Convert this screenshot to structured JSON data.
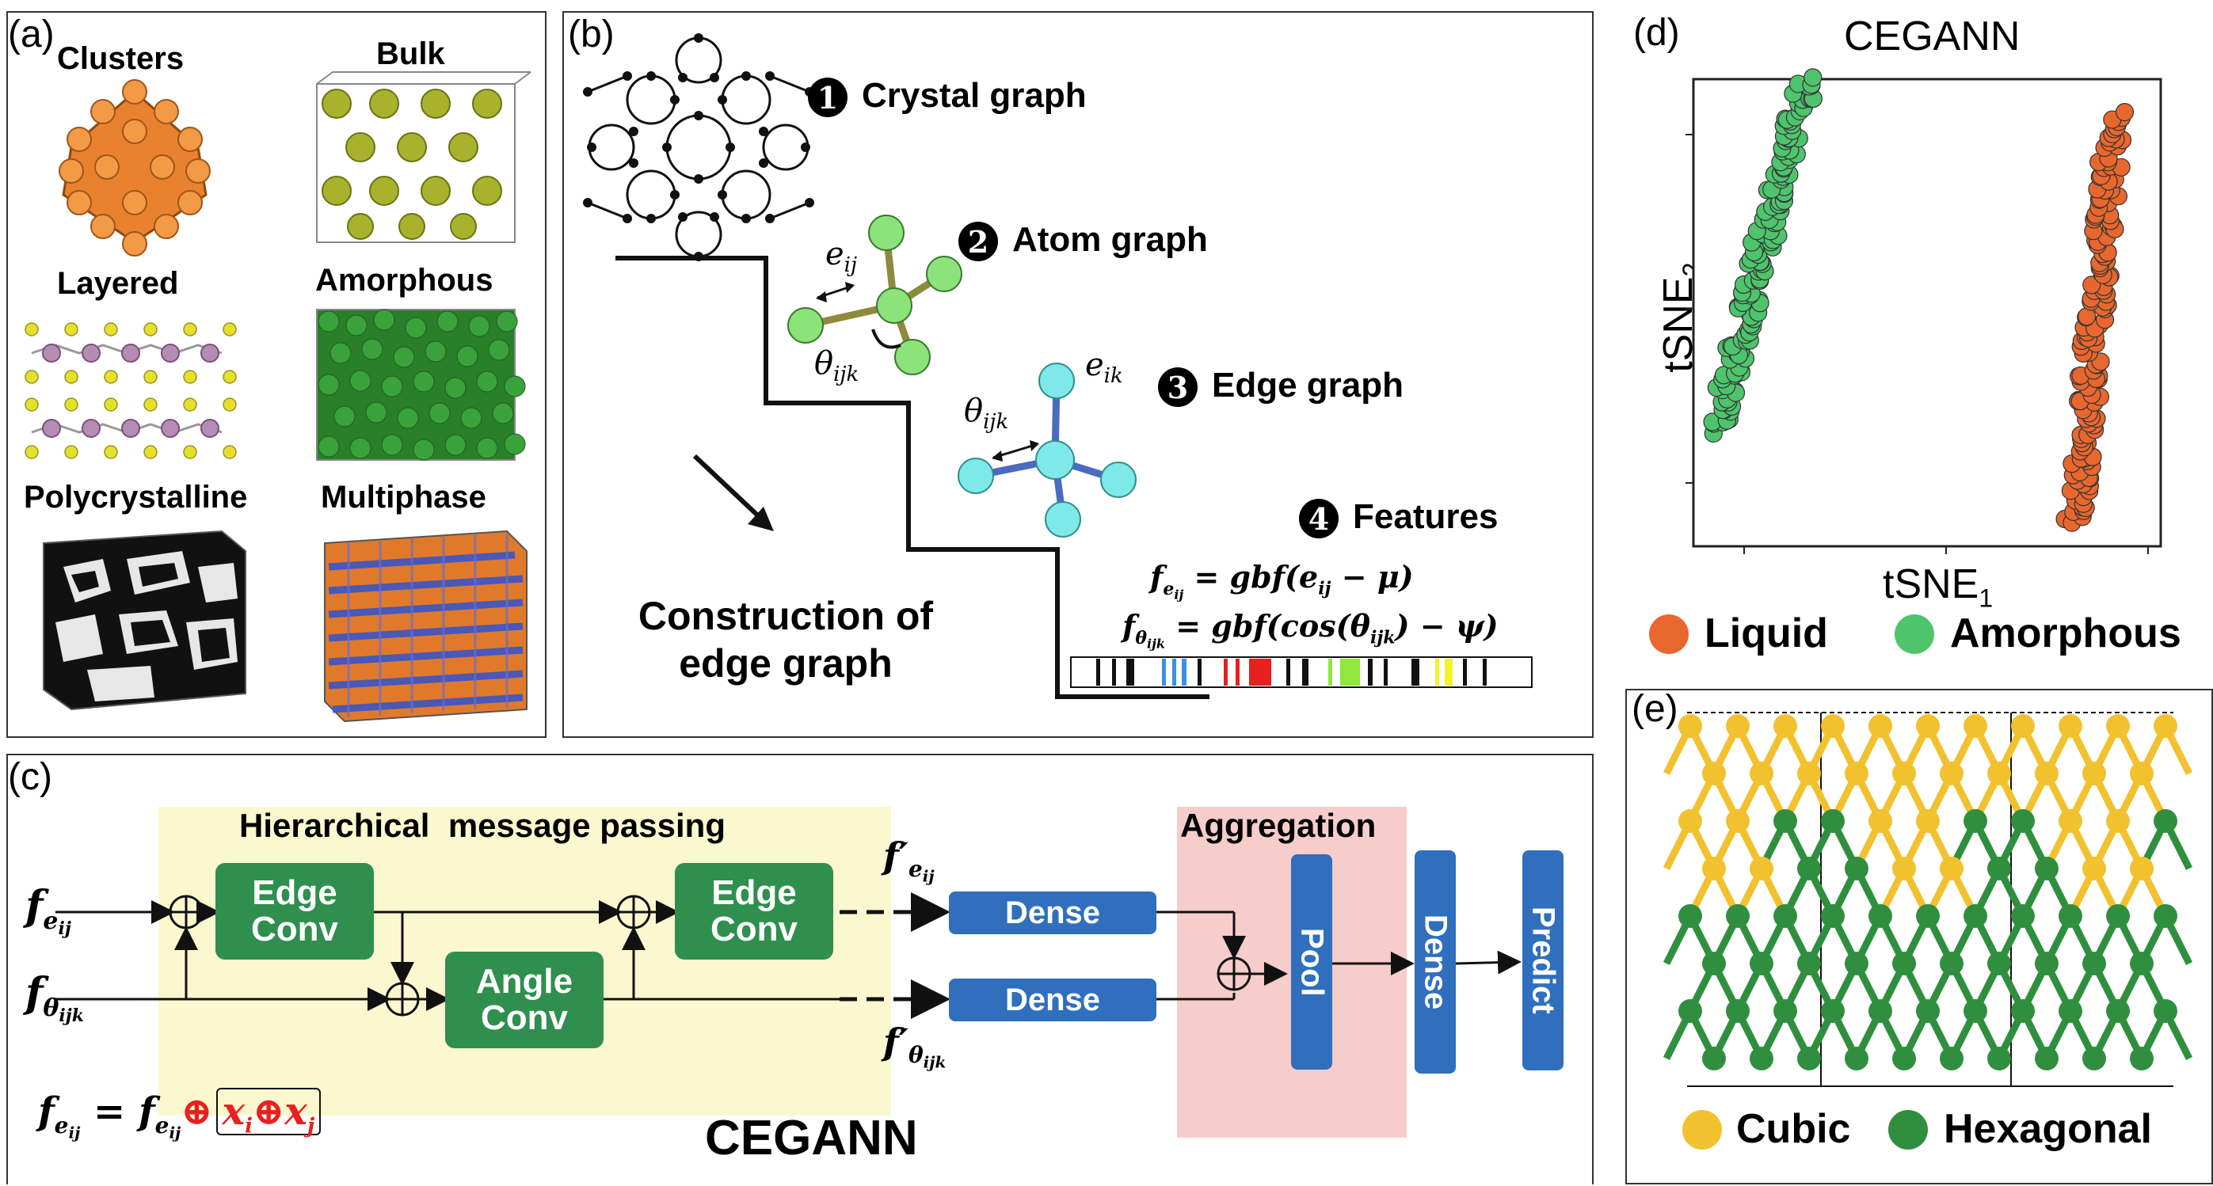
{
  "panel_a": {
    "label": "(a)",
    "items": [
      {
        "label": "Clusters",
        "color": "#e8822f"
      },
      {
        "label": "Bulk",
        "color": "#a8b22c"
      },
      {
        "label": "Layered",
        "color": "#b48cb4"
      },
      {
        "label": "Amorphous",
        "color": "#2f8f2f"
      },
      {
        "label": "Polycrystalline",
        "color": "#111111"
      },
      {
        "label": "Multiphase",
        "color": "#e07a2a"
      }
    ]
  },
  "panel_b": {
    "label": "(b)",
    "steps": [
      {
        "num": "1",
        "label": "Crystal graph"
      },
      {
        "num": "2",
        "label": "Atom graph"
      },
      {
        "num": "3",
        "label": "Edge graph"
      },
      {
        "num": "4",
        "label": "Features"
      }
    ],
    "e_ij": "e",
    "e_ij_sub": "ij",
    "theta_ijk": "θ",
    "theta_sub": "ijk",
    "e_ik": "e",
    "e_ik_sub": "ik",
    "formula1": "= gbf(e",
    "formula1_sub": "ij",
    "formula1_end": " − μ)",
    "formula2": "= gbf(cos(θ",
    "formula2_sub": "ijk",
    "formula2_end": ") − ψ)",
    "f": "f",
    "construction_line1": "Construction of",
    "construction_line2": "edge graph"
  },
  "panel_c": {
    "label": "(c)",
    "hmp_title": "Hierarchical  message passing",
    "aggregation": "Aggregation",
    "edge_conv_1": "Edge\nConv",
    "angle_conv": "Angle\nConv",
    "edge_conv_2": "Edge\nConv",
    "dense_top": "Dense",
    "dense_bottom": "Dense",
    "pool": "Pool",
    "dense_vertical": "Dense",
    "predict": "Predict",
    "f": "f",
    "e_sub": "e",
    "ij": "ij",
    "theta_sub": "θ",
    "ijk": "ijk",
    "prime": "′",
    "eq_sign": " = ",
    "oplus": "⊕",
    "x": "x",
    "i": "i",
    "j": "j",
    "model_name": "CEGANN"
  },
  "panel_d": {
    "label": "(d)",
    "chart_data": {
      "type": "scatter",
      "title": "CEGANN",
      "xlabel": "tSNE",
      "xlabel_sub": "1",
      "ylabel": "tSNE",
      "ylabel_sub": "2",
      "series": [
        {
          "name": "Liquid",
          "color": "#e8672e",
          "x_range": [
            0.82,
            0.9
          ],
          "y_range": [
            0.05,
            0.92
          ]
        },
        {
          "name": "Amorphous",
          "color": "#4ec46c",
          "x_range": [
            0.05,
            0.24
          ],
          "y_range": [
            0.25,
            1.0
          ]
        }
      ]
    }
  },
  "panel_e": {
    "label": "(e)",
    "legend": [
      {
        "name": "Cubic",
        "color": "#f2c12e"
      },
      {
        "name": "Hexagonal",
        "color": "#2f8f3f"
      }
    ]
  }
}
